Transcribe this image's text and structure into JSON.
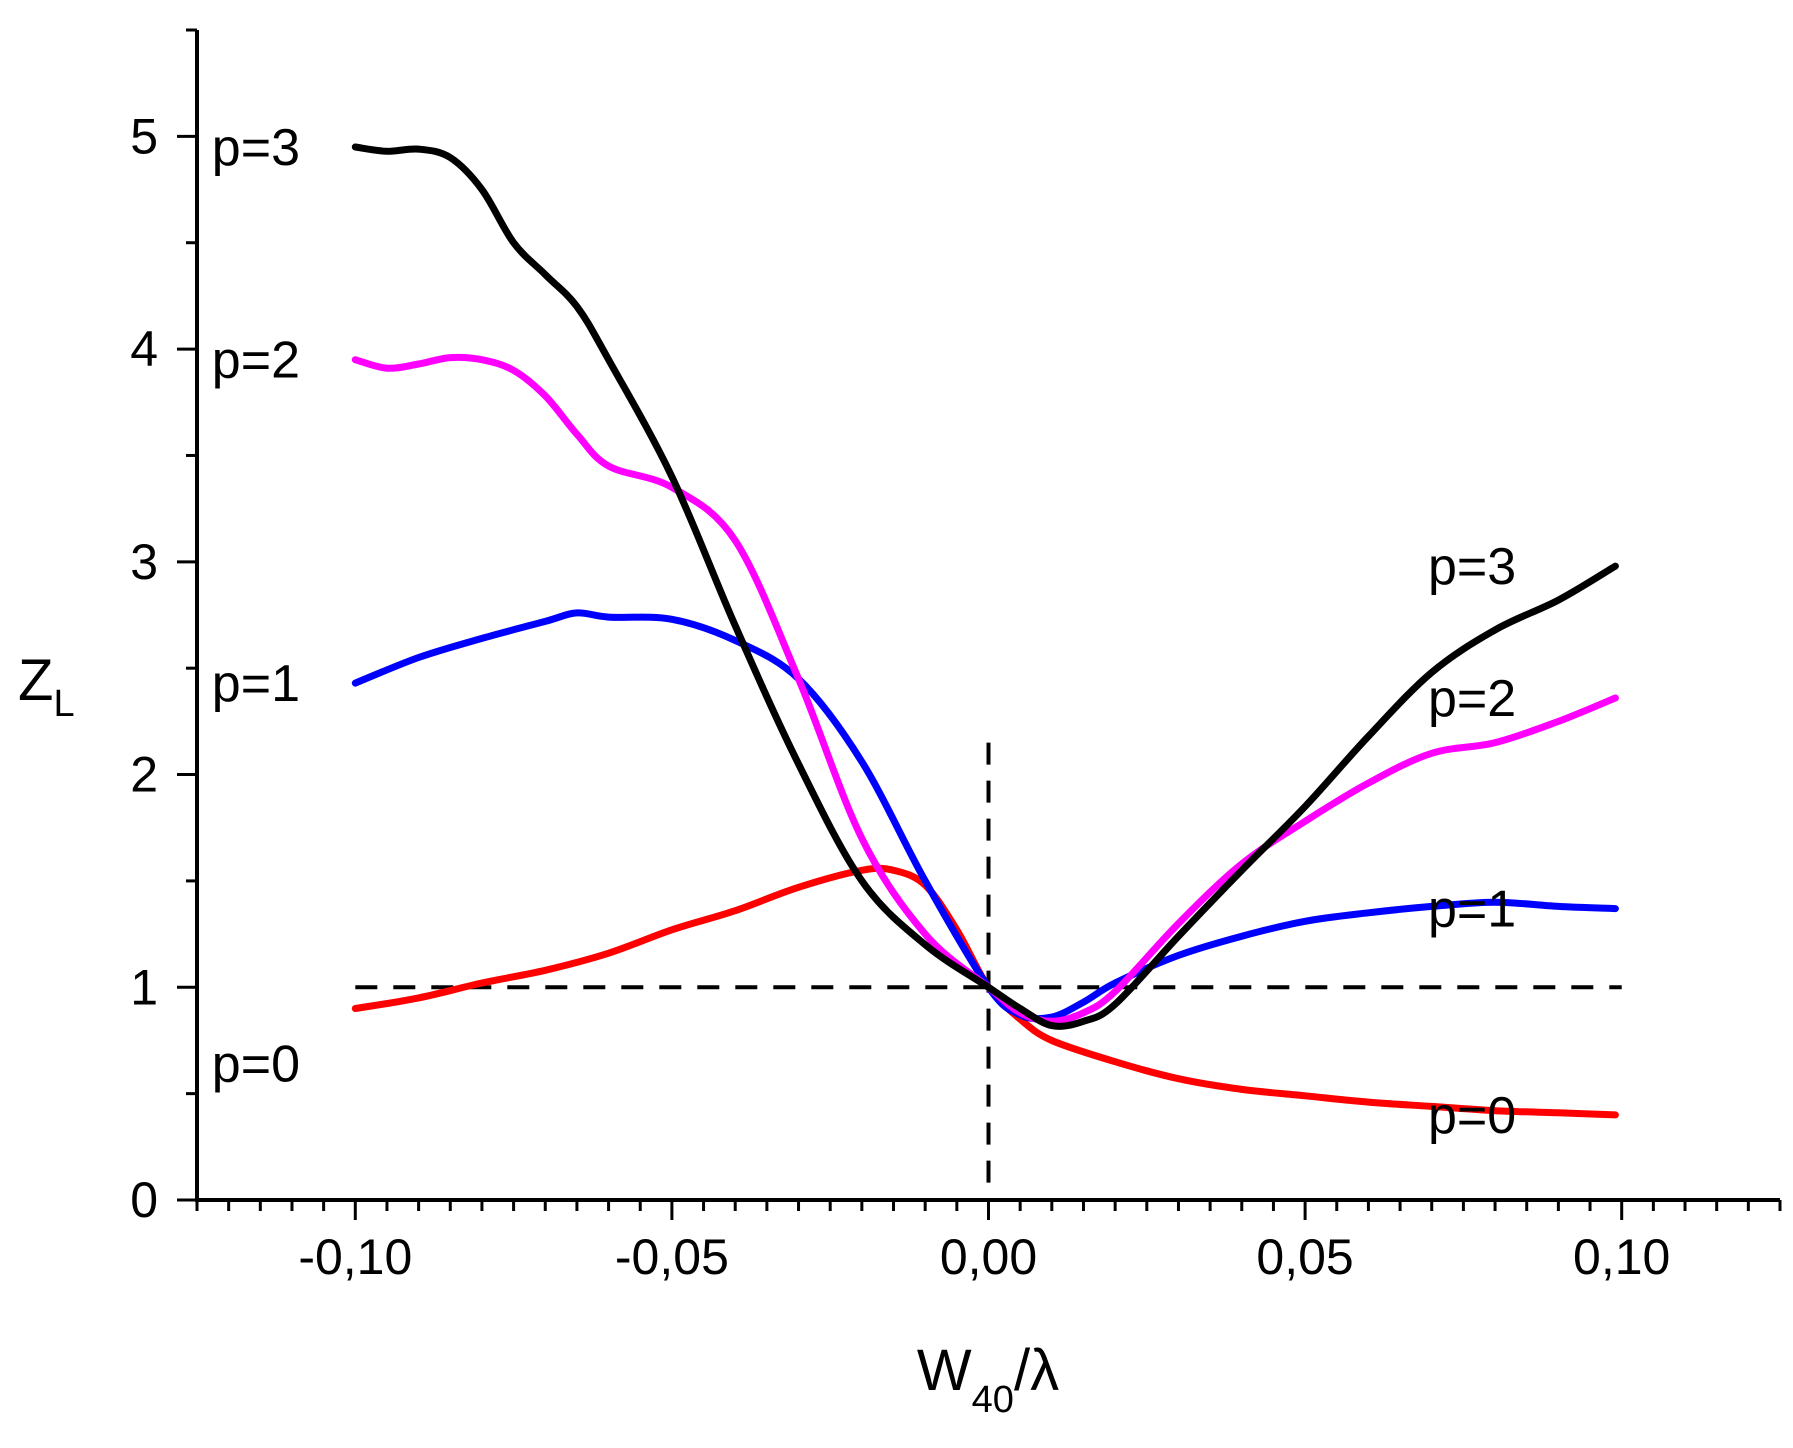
{
  "chart_data": {
    "type": "line",
    "xlabel": {
      "main": "W",
      "sub": "40",
      "suffix": "/λ"
    },
    "ylabel": {
      "main": "Z",
      "sub": "L"
    },
    "xlim": [
      -0.125,
      0.125
    ],
    "ylim": [
      0,
      5.5
    ],
    "xticks": [
      -0.1,
      -0.05,
      0.0,
      0.05,
      0.1
    ],
    "xtick_labels": [
      "-0,10",
      "-0,05",
      "0,00",
      "0,05",
      "0,10"
    ],
    "yticks": [
      0,
      1,
      2,
      3,
      4,
      5
    ],
    "ytick_labels": [
      "0",
      "1",
      "2",
      "3",
      "4",
      "5"
    ],
    "reference_lines": {
      "horizontal_y": 1,
      "vertical_x": 0
    },
    "series": [
      {
        "name": "p=0",
        "color": "#ff0000",
        "left_label": "p=0",
        "right_label": "p=0",
        "x": [
          -0.1,
          -0.09,
          -0.08,
          -0.07,
          -0.06,
          -0.05,
          -0.04,
          -0.03,
          -0.02,
          -0.015,
          -0.01,
          -0.005,
          0.0,
          0.005,
          0.01,
          0.02,
          0.03,
          0.04,
          0.05,
          0.06,
          0.07,
          0.08,
          0.09,
          0.099
        ],
        "y": [
          0.9,
          0.95,
          1.02,
          1.08,
          1.16,
          1.27,
          1.36,
          1.47,
          1.55,
          1.55,
          1.48,
          1.27,
          1.0,
          0.85,
          0.75,
          0.65,
          0.57,
          0.52,
          0.49,
          0.46,
          0.44,
          0.42,
          0.41,
          0.4
        ]
      },
      {
        "name": "p=1",
        "color": "#0000ff",
        "left_label": "p=1",
        "right_label": "p=1",
        "x": [
          -0.1,
          -0.09,
          -0.08,
          -0.07,
          -0.065,
          -0.06,
          -0.05,
          -0.04,
          -0.03,
          -0.02,
          -0.01,
          0.0,
          0.005,
          0.01,
          0.015,
          0.02,
          0.03,
          0.04,
          0.05,
          0.06,
          0.07,
          0.08,
          0.09,
          0.099
        ],
        "y": [
          2.43,
          2.55,
          2.64,
          2.72,
          2.76,
          2.74,
          2.73,
          2.63,
          2.45,
          2.06,
          1.5,
          1.0,
          0.87,
          0.86,
          0.93,
          1.02,
          1.15,
          1.24,
          1.31,
          1.35,
          1.38,
          1.4,
          1.38,
          1.37
        ]
      },
      {
        "name": "p=2",
        "color": "#ff00ff",
        "left_label": "p=2",
        "right_label": "p=2",
        "x": [
          -0.1,
          -0.095,
          -0.09,
          -0.085,
          -0.08,
          -0.075,
          -0.07,
          -0.065,
          -0.06,
          -0.05,
          -0.04,
          -0.03,
          -0.02,
          -0.01,
          0.0,
          0.005,
          0.01,
          0.015,
          0.02,
          0.03,
          0.04,
          0.05,
          0.06,
          0.07,
          0.08,
          0.09,
          0.099
        ],
        "y": [
          3.95,
          3.91,
          3.93,
          3.96,
          3.95,
          3.9,
          3.78,
          3.6,
          3.45,
          3.35,
          3.1,
          2.45,
          1.7,
          1.25,
          1.0,
          0.88,
          0.84,
          0.88,
          0.98,
          1.3,
          1.58,
          1.78,
          1.96,
          2.1,
          2.15,
          2.25,
          2.36
        ]
      },
      {
        "name": "p=3",
        "color": "#000000",
        "left_label": "p=3",
        "right_label": "p=3",
        "x": [
          -0.1,
          -0.095,
          -0.09,
          -0.085,
          -0.08,
          -0.075,
          -0.07,
          -0.065,
          -0.06,
          -0.05,
          -0.04,
          -0.03,
          -0.02,
          -0.01,
          0.0,
          0.005,
          0.01,
          0.015,
          0.02,
          0.03,
          0.04,
          0.05,
          0.06,
          0.07,
          0.08,
          0.09,
          0.099
        ],
        "y": [
          4.95,
          4.93,
          4.94,
          4.9,
          4.75,
          4.5,
          4.35,
          4.2,
          3.95,
          3.4,
          2.7,
          2.05,
          1.5,
          1.2,
          1.0,
          0.9,
          0.82,
          0.84,
          0.92,
          1.24,
          1.55,
          1.85,
          2.18,
          2.48,
          2.68,
          2.82,
          2.98
        ]
      }
    ]
  }
}
